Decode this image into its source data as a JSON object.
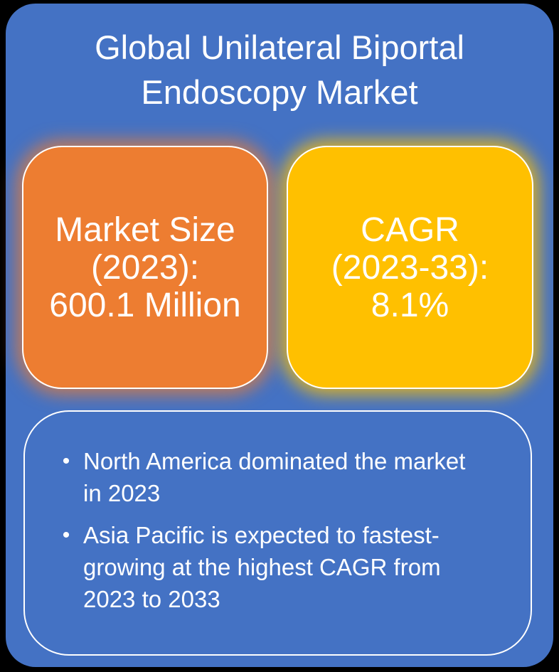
{
  "title": {
    "lines": [
      "Global Unilateral Biportal",
      "Endoscopy Market"
    ]
  },
  "cards": {
    "market_size": {
      "lines": [
        "Market Size",
        "(2023):",
        "600.1 Million"
      ]
    },
    "cagr": {
      "lines": [
        "CAGR",
        "(2023-33):",
        "8.1%"
      ]
    }
  },
  "highlights": {
    "bullet_char": "•",
    "items": [
      {
        "lines": [
          "North America dominated the market",
          "in 2023"
        ]
      },
      {
        "lines": [
          "Asia Pacific is expected to fastest-",
          "growing at the highest CAGR from",
          "2023 to 2033"
        ]
      }
    ]
  },
  "colors": {
    "frame_black": "#000000",
    "canvas_blue": "#4472C4",
    "text_white": "#FFFFFF",
    "card_border": "#FFFFFF",
    "panel_border": "#FFFFFF",
    "market_size_fill": "#ED7D31",
    "market_size_glow": "rgba(237,125,49,0.75)",
    "cagr_fill": "#FFC000",
    "cagr_glow": "rgba(255,192,0,0.8)"
  }
}
